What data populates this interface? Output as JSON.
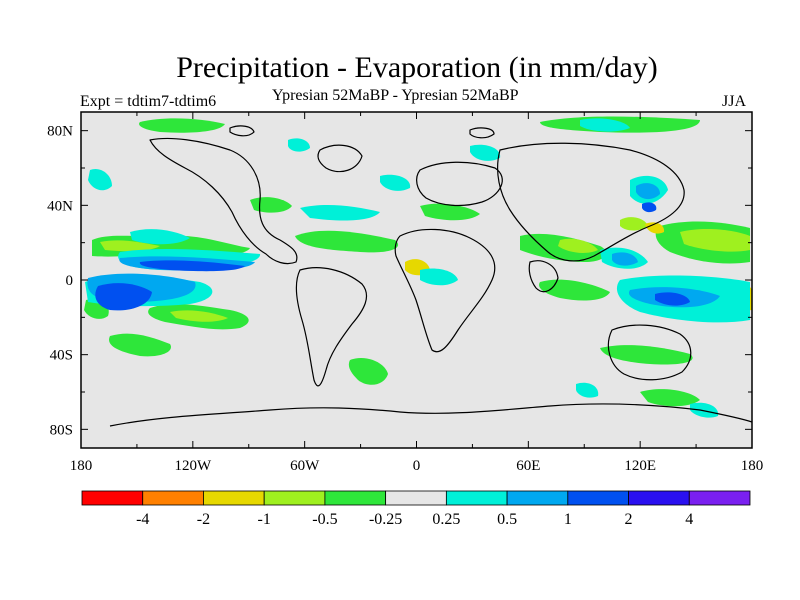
{
  "title": "Precipitation - Evaporation (in mm/day)",
  "subtitle": "Ypresian  52MaBP - Ypresian  52MaBP",
  "experiment": "Expt = tdtim7-tdtim6",
  "season": "JJA",
  "map": {
    "type": "filled-contour-map",
    "projection": "cylindrical-equidistant",
    "lon_range": [
      -180,
      180
    ],
    "lat_range": [
      -90,
      90
    ],
    "lon_ticks": [
      "180",
      "120W",
      "60W",
      "0",
      "60E",
      "120E",
      "180"
    ],
    "lat_ticks": [
      "80N",
      "40N",
      "0",
      "40S",
      "80S"
    ],
    "background_color": "#e6e6e6",
    "coastline_color": "#000000"
  },
  "colorbar": {
    "colors": [
      "#ff0000",
      "#ff8000",
      "#e6d800",
      "#9ff01f",
      "#2ee63a",
      "#e6e6e6",
      "#00f0d8",
      "#00a8f0",
      "#0050f0",
      "#2a10f0",
      "#7a20f0"
    ],
    "labels": [
      "-4",
      "-2",
      "-1",
      "-0.5",
      "-0.25",
      "0.25",
      "0.5",
      "1",
      "2",
      "4"
    ]
  }
}
